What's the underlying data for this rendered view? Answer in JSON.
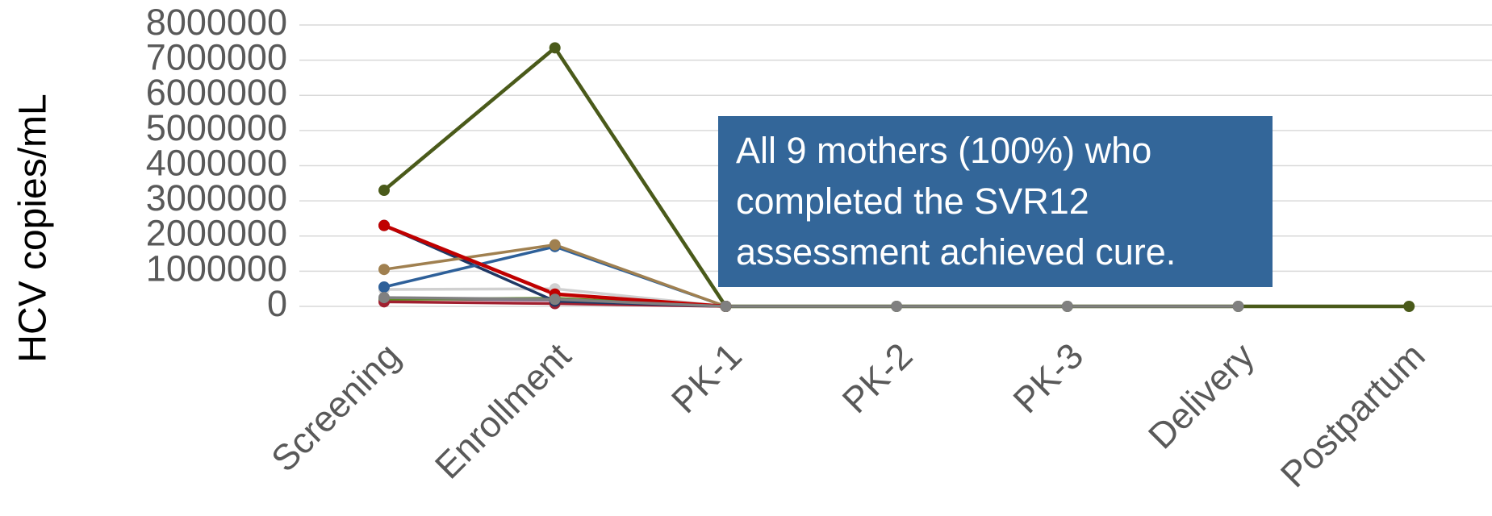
{
  "chart_data": {
    "type": "line",
    "y_label": "HCV copies/mL",
    "categories": [
      "Screening",
      "Enrollment",
      "PK-1",
      "PK-2",
      "PK-3",
      "Delivery",
      "Postpartum"
    ],
    "ylim": [
      0,
      8000000
    ],
    "yticks": [
      0,
      1000000,
      2000000,
      3000000,
      4000000,
      5000000,
      6000000,
      7000000,
      8000000
    ],
    "grid": true,
    "annotation": [
      "All 9 mothers (100%) who",
      "completed the SVR12",
      "assessment achieved cure."
    ],
    "series": [
      {
        "color": "#d0d0d0",
        "values": [
          480000,
          500000,
          0,
          null,
          null,
          null,
          null
        ]
      },
      {
        "color": "#7a5c8a",
        "values": [
          220000,
          180000,
          0,
          null,
          null,
          null,
          null
        ]
      },
      {
        "color": "#5a8a20",
        "values": [
          200000,
          230000,
          0,
          null,
          null,
          null,
          null
        ]
      },
      {
        "color": "#a02030",
        "values": [
          130000,
          80000,
          0,
          null,
          null,
          null,
          null
        ]
      },
      {
        "color": "#1f3864",
        "values": [
          2300000,
          150000,
          0,
          null,
          null,
          null,
          null
        ]
      },
      {
        "color": "#2e6099",
        "values": [
          550000,
          1700000,
          0,
          null,
          null,
          null,
          null
        ]
      },
      {
        "color": "#a08050",
        "values": [
          1050000,
          1750000,
          0,
          null,
          null,
          null,
          null
        ]
      },
      {
        "color": "#c00000",
        "values": [
          2300000,
          350000,
          0,
          null,
          null,
          null,
          null
        ]
      },
      {
        "color": "#4a5a1a",
        "values": [
          3300000,
          7350000,
          0,
          0,
          0,
          0,
          0
        ]
      },
      {
        "color": "#808080",
        "values": [
          250000,
          200000,
          0,
          0,
          0,
          0,
          null
        ]
      }
    ]
  }
}
